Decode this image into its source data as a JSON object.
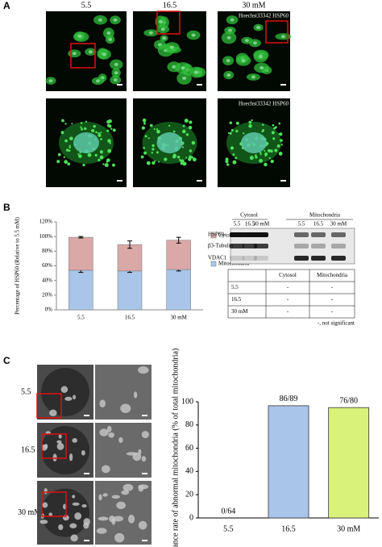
{
  "panel_letters": [
    "A",
    "B",
    "C"
  ],
  "panel_a": {
    "columns": [
      "5.5",
      "16.5",
      "30 mM"
    ],
    "stain_labels": [
      "Hoechst33342  HSP60",
      "Hoechst33342  HSP60"
    ]
  },
  "chart_data": [
    {
      "type": "stacked-bar",
      "y_label": "Percentage of HSP60 (Relative to 5.5 mM)",
      "categories": [
        "5.5",
        "16.5",
        "30 mM"
      ],
      "series": [
        {
          "name": "Mitochondria",
          "color": "#a9c5ea",
          "values": [
            54,
            53,
            55
          ],
          "errors": [
            3,
            2,
            2
          ]
        },
        {
          "name": "Cytosol",
          "color": "#dba8a8",
          "values": [
            45,
            36,
            40
          ],
          "errors": [
            1,
            5,
            4
          ]
        }
      ],
      "ylim": [
        0,
        120
      ],
      "yticks": [
        {
          "value": 0,
          "label": "0%"
        },
        {
          "value": 20,
          "label": "20%"
        },
        {
          "value": 40,
          "label": "40%"
        },
        {
          "value": 60,
          "label": "60%"
        },
        {
          "value": 80,
          "label": "80%"
        },
        {
          "value": 100,
          "label": "100%"
        },
        {
          "value": 120,
          "label": "120%"
        }
      ]
    },
    {
      "type": "bar",
      "y_label": "Appearance rate of abnormal mitochondria (% of total mitochondria)",
      "categories": [
        "5.5",
        "16.5",
        "30 mM"
      ],
      "values": [
        0,
        96.6,
        95
      ],
      "value_labels": [
        "0/64",
        "86/89",
        "76/80"
      ],
      "colors": [
        "#eef3fb",
        "#a9c5ea",
        "#d9f27a"
      ],
      "ylim": [
        0,
        100
      ],
      "yticks": [
        0,
        20,
        40,
        60,
        80,
        100
      ]
    }
  ],
  "blot": {
    "groups": [
      "Cytosol",
      "Mitochondria"
    ],
    "lanes": [
      "5.5",
      "16.5",
      "30 mM",
      "5.5",
      "16.5",
      "30 mM"
    ],
    "rows": [
      "HSP60",
      "β3-Tubulin",
      "VDAC1"
    ]
  },
  "table": {
    "columns": [
      "Cytosol",
      "Mitochondria"
    ],
    "rows": [
      [
        "5.5",
        "-",
        "-"
      ],
      [
        "16.5",
        "-",
        "-"
      ],
      [
        "30 mM",
        "-",
        "-"
      ]
    ],
    "note": "-, not significant"
  },
  "panel_c": {
    "rows": [
      "5.5",
      "16.5",
      "30 mM"
    ]
  }
}
